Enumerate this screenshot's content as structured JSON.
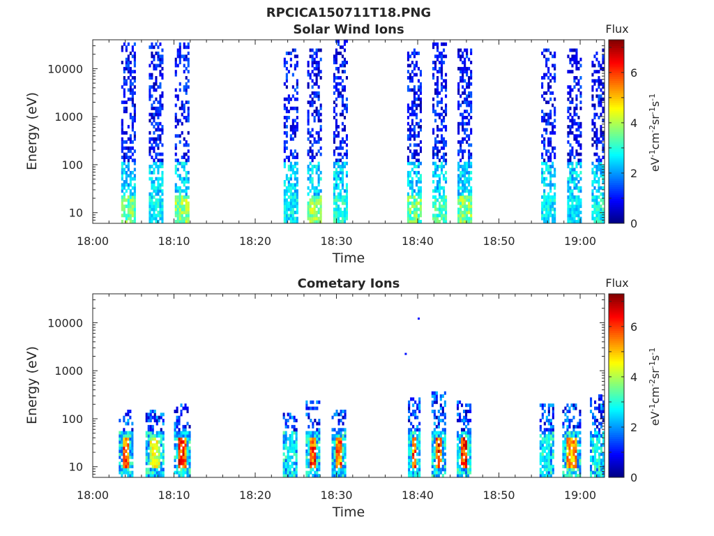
{
  "figure": {
    "title": "RPCICA150711T18.PNG"
  },
  "chart_data": [
    {
      "type": "heatmap",
      "title": "Solar Wind Ions",
      "xlabel": "Time",
      "ylabel": "Energy (eV)",
      "x_ticks": [
        "18:00",
        "18:10",
        "18:20",
        "18:30",
        "18:40",
        "18:50",
        "19:00"
      ],
      "x_range": [
        "18:00",
        "19:03"
      ],
      "y_scale": "log",
      "y_ticks": [
        10,
        100,
        1000,
        10000
      ],
      "y_tick_labels": [
        "10",
        "100",
        "1000",
        "10000"
      ],
      "y_range": [
        6,
        40000
      ],
      "colorbar": {
        "title": "Flux",
        "label": "eV-1cm-2sr-1s-1",
        "range": [
          0,
          7.3
        ],
        "ticks": [
          0,
          2,
          4,
          6
        ],
        "tick_labels": [
          "0",
          "2",
          "4",
          "6"
        ],
        "colormap": "jet"
      },
      "bursts": [
        {
          "start": "18:03.5",
          "end": "18:05.2",
          "max_energy": 30000,
          "low_flux": 4.2
        },
        {
          "start": "18:06.9",
          "end": "18:08.7",
          "max_energy": 30000,
          "low_flux": 3.2
        },
        {
          "start": "18:10.1",
          "end": "18:11.9",
          "max_energy": 30000,
          "low_flux": 4.6
        },
        {
          "start": "18:23.5",
          "end": "18:25.2",
          "max_energy": 25000,
          "low_flux": 3.2
        },
        {
          "start": "18:26.4",
          "end": "18:28.1",
          "max_energy": 25000,
          "low_flux": 4.5
        },
        {
          "start": "18:29.6",
          "end": "18:31.2",
          "max_energy": 40000,
          "low_flux": 3.5
        },
        {
          "start": "18:38.7",
          "end": "18:40.4",
          "max_energy": 25000,
          "low_flux": 4.2
        },
        {
          "start": "18:41.8",
          "end": "18:43.6",
          "max_energy": 30000,
          "low_flux": 3.8
        },
        {
          "start": "18:44.9",
          "end": "18:46.6",
          "max_energy": 25000,
          "low_flux": 4.4
        },
        {
          "start": "18:55.2",
          "end": "18:56.8",
          "max_energy": 25000,
          "low_flux": 3.2
        },
        {
          "start": "18:58.4",
          "end": "19:00.1",
          "max_energy": 25000,
          "low_flux": 3.0
        },
        {
          "start": "19:01.4",
          "end": "19:02.9",
          "max_energy": 25000,
          "low_flux": 3.4
        }
      ]
    },
    {
      "type": "heatmap",
      "title": "Cometary Ions",
      "xlabel": "Time",
      "ylabel": "Energy (eV)",
      "x_ticks": [
        "18:00",
        "18:10",
        "18:20",
        "18:30",
        "18:40",
        "18:50",
        "19:00"
      ],
      "x_range": [
        "18:00",
        "19:03"
      ],
      "y_scale": "log",
      "y_ticks": [
        10,
        100,
        1000,
        10000
      ],
      "y_tick_labels": [
        "10",
        "100",
        "1000",
        "10000"
      ],
      "y_range": [
        6,
        40000
      ],
      "colorbar": {
        "title": "Flux",
        "label": "eV-1cm-2sr-1s-1",
        "range": [
          0,
          7.3
        ],
        "ticks": [
          0,
          2,
          4,
          6
        ],
        "tick_labels": [
          "0",
          "2",
          "4",
          "6"
        ],
        "colormap": "jet"
      },
      "bursts": [
        {
          "start": "18:03.2",
          "end": "18:05.0",
          "max_energy": 150,
          "peak_flux": 6.5
        },
        {
          "start": "18:06.5",
          "end": "18:08.6",
          "max_energy": 150,
          "peak_flux": 5.0
        },
        {
          "start": "18:10.0",
          "end": "18:11.9",
          "max_energy": 180,
          "peak_flux": 6.9
        },
        {
          "start": "18:23.4",
          "end": "18:25.0",
          "max_energy": 130,
          "peak_flux": 3.0
        },
        {
          "start": "18:26.2",
          "end": "18:28.0",
          "max_energy": 220,
          "peak_flux": 7.0
        },
        {
          "start": "18:29.4",
          "end": "18:31.0",
          "max_energy": 150,
          "peak_flux": 6.6
        },
        {
          "start": "18:38.8",
          "end": "18:40.2",
          "max_energy": 250,
          "peak_flux": 6.8
        },
        {
          "start": "18:41.7",
          "end": "18:43.5",
          "max_energy": 320,
          "peak_flux": 7.0
        },
        {
          "start": "18:44.8",
          "end": "18:46.6",
          "max_energy": 220,
          "peak_flux": 7.0
        },
        {
          "start": "18:55.0",
          "end": "18:56.7",
          "max_energy": 180,
          "peak_flux": 3.2
        },
        {
          "start": "18:57.8",
          "end": "18:59.9",
          "max_energy": 200,
          "peak_flux": 6.2
        },
        {
          "start": "19:01.2",
          "end": "19:02.9",
          "max_energy": 300,
          "peak_flux": 3.5
        }
      ],
      "isolated_points": [
        {
          "time": "18:38.4",
          "energy": 2200,
          "flux": 1.0
        },
        {
          "time": "18:40.0",
          "energy": 12000,
          "flux": 1.0
        }
      ]
    }
  ]
}
